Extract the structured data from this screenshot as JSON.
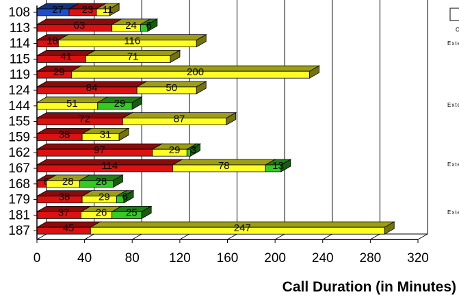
{
  "chart_data": {
    "type": "bar",
    "orientation": "horizontal",
    "stacked": true,
    "three_d": true,
    "title": "",
    "xlabel": "Call Duration (in Minutes)",
    "ylabel": "",
    "xlim": [
      0,
      320
    ],
    "xticks": [
      0,
      40,
      80,
      120,
      160,
      200,
      240,
      280,
      320
    ],
    "grid": "vertical",
    "categories": [
      "108",
      "113",
      "114",
      "115",
      "119",
      "124",
      "144",
      "155",
      "159",
      "162",
      "167",
      "168",
      "179",
      "181",
      "187"
    ],
    "series": [
      {
        "color": "#1f4fc8",
        "values": [
          27,
          0,
          0,
          0,
          0,
          0,
          0,
          0,
          0,
          0,
          0,
          0,
          0,
          0,
          0
        ]
      },
      {
        "color": "#dd1111",
        "values": [
          23,
          63,
          18,
          41,
          29,
          84,
          0,
          72,
          38,
          97,
          114,
          8,
          38,
          37,
          45
        ]
      },
      {
        "color": "#ffff22",
        "values": [
          11,
          24,
          116,
          71,
          200,
          50,
          51,
          87,
          31,
          29,
          78,
          28,
          29,
          26,
          247
        ]
      },
      {
        "color": "#33cc22",
        "values": [
          0,
          6,
          0,
          0,
          0,
          0,
          29,
          0,
          0,
          3,
          13,
          28,
          6,
          25,
          0
        ]
      }
    ],
    "data_labels": [
      [
        "27",
        "23",
        "11"
      ],
      [
        "63",
        "24",
        "6"
      ],
      [
        "18",
        "116"
      ],
      [
        "41",
        "71"
      ],
      [
        "29",
        "200"
      ],
      [
        "84",
        "50"
      ],
      [
        "51",
        "29"
      ],
      [
        "72",
        "87"
      ],
      [
        "38",
        "31"
      ],
      [
        "97",
        "29",
        "3"
      ],
      [
        "114",
        "78",
        "13"
      ],
      [
        "8",
        "28",
        "28"
      ],
      [
        "38",
        "29",
        "6"
      ],
      [
        "37",
        "26",
        "25"
      ],
      [
        "45",
        "247"
      ]
    ],
    "legend": {
      "position": "right",
      "entries": [
        "C",
        "Exte",
        "Exte",
        "Exte",
        "Exte"
      ]
    }
  }
}
